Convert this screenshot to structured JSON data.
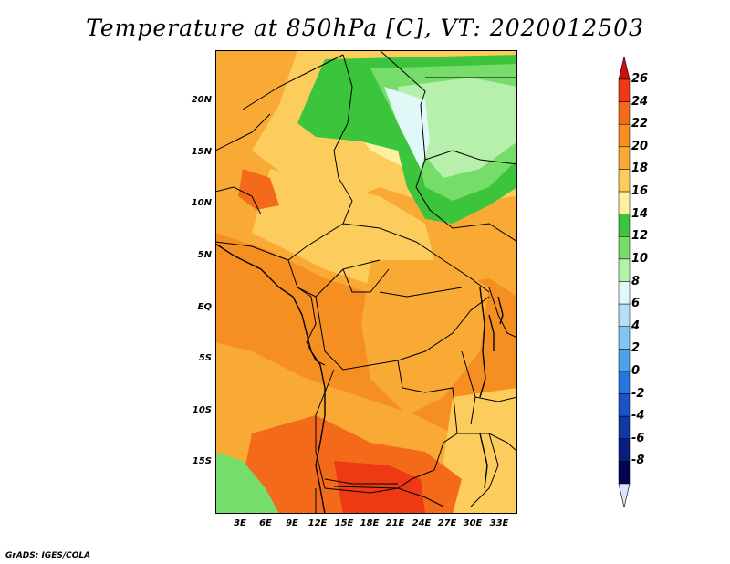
{
  "title": "Temperature at 850hPa [C], VT: 2020012503",
  "credit": "GrADS: IGES/COLA",
  "y_axis_labels": [
    "20N",
    "15N",
    "10N",
    "5N",
    "EQ",
    "5S",
    "10S",
    "15S"
  ],
  "x_axis_labels": [
    "3E",
    "6E",
    "9E",
    "12E",
    "15E",
    "18E",
    "21E",
    "24E",
    "27E",
    "30E",
    "33E"
  ],
  "colorbar": {
    "labels": [
      "26",
      "24",
      "22",
      "20",
      "18",
      "16",
      "14",
      "12",
      "10",
      "8",
      "6",
      "4",
      "2",
      "0",
      "-2",
      "-4",
      "-6",
      "-8"
    ],
    "colors": [
      "#cc1010",
      "#ee3a14",
      "#f36a1a",
      "#f58f22",
      "#f9aa34",
      "#fccd5d",
      "#fef0a0",
      "#3cc43c",
      "#76dc6a",
      "#b6f0ac",
      "#e0f8f8",
      "#b4dff6",
      "#84c4f0",
      "#4ea2ec",
      "#2676e0",
      "#1a52c8",
      "#1038a4",
      "#081e7c",
      "#020652",
      "#e0e0ff"
    ]
  }
}
